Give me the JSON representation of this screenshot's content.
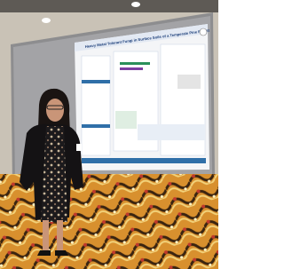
{
  "poster": {
    "title": "Heavy Metal Tolerant Fungi in Surface Soils of a Temperate Pine Forest"
  }
}
